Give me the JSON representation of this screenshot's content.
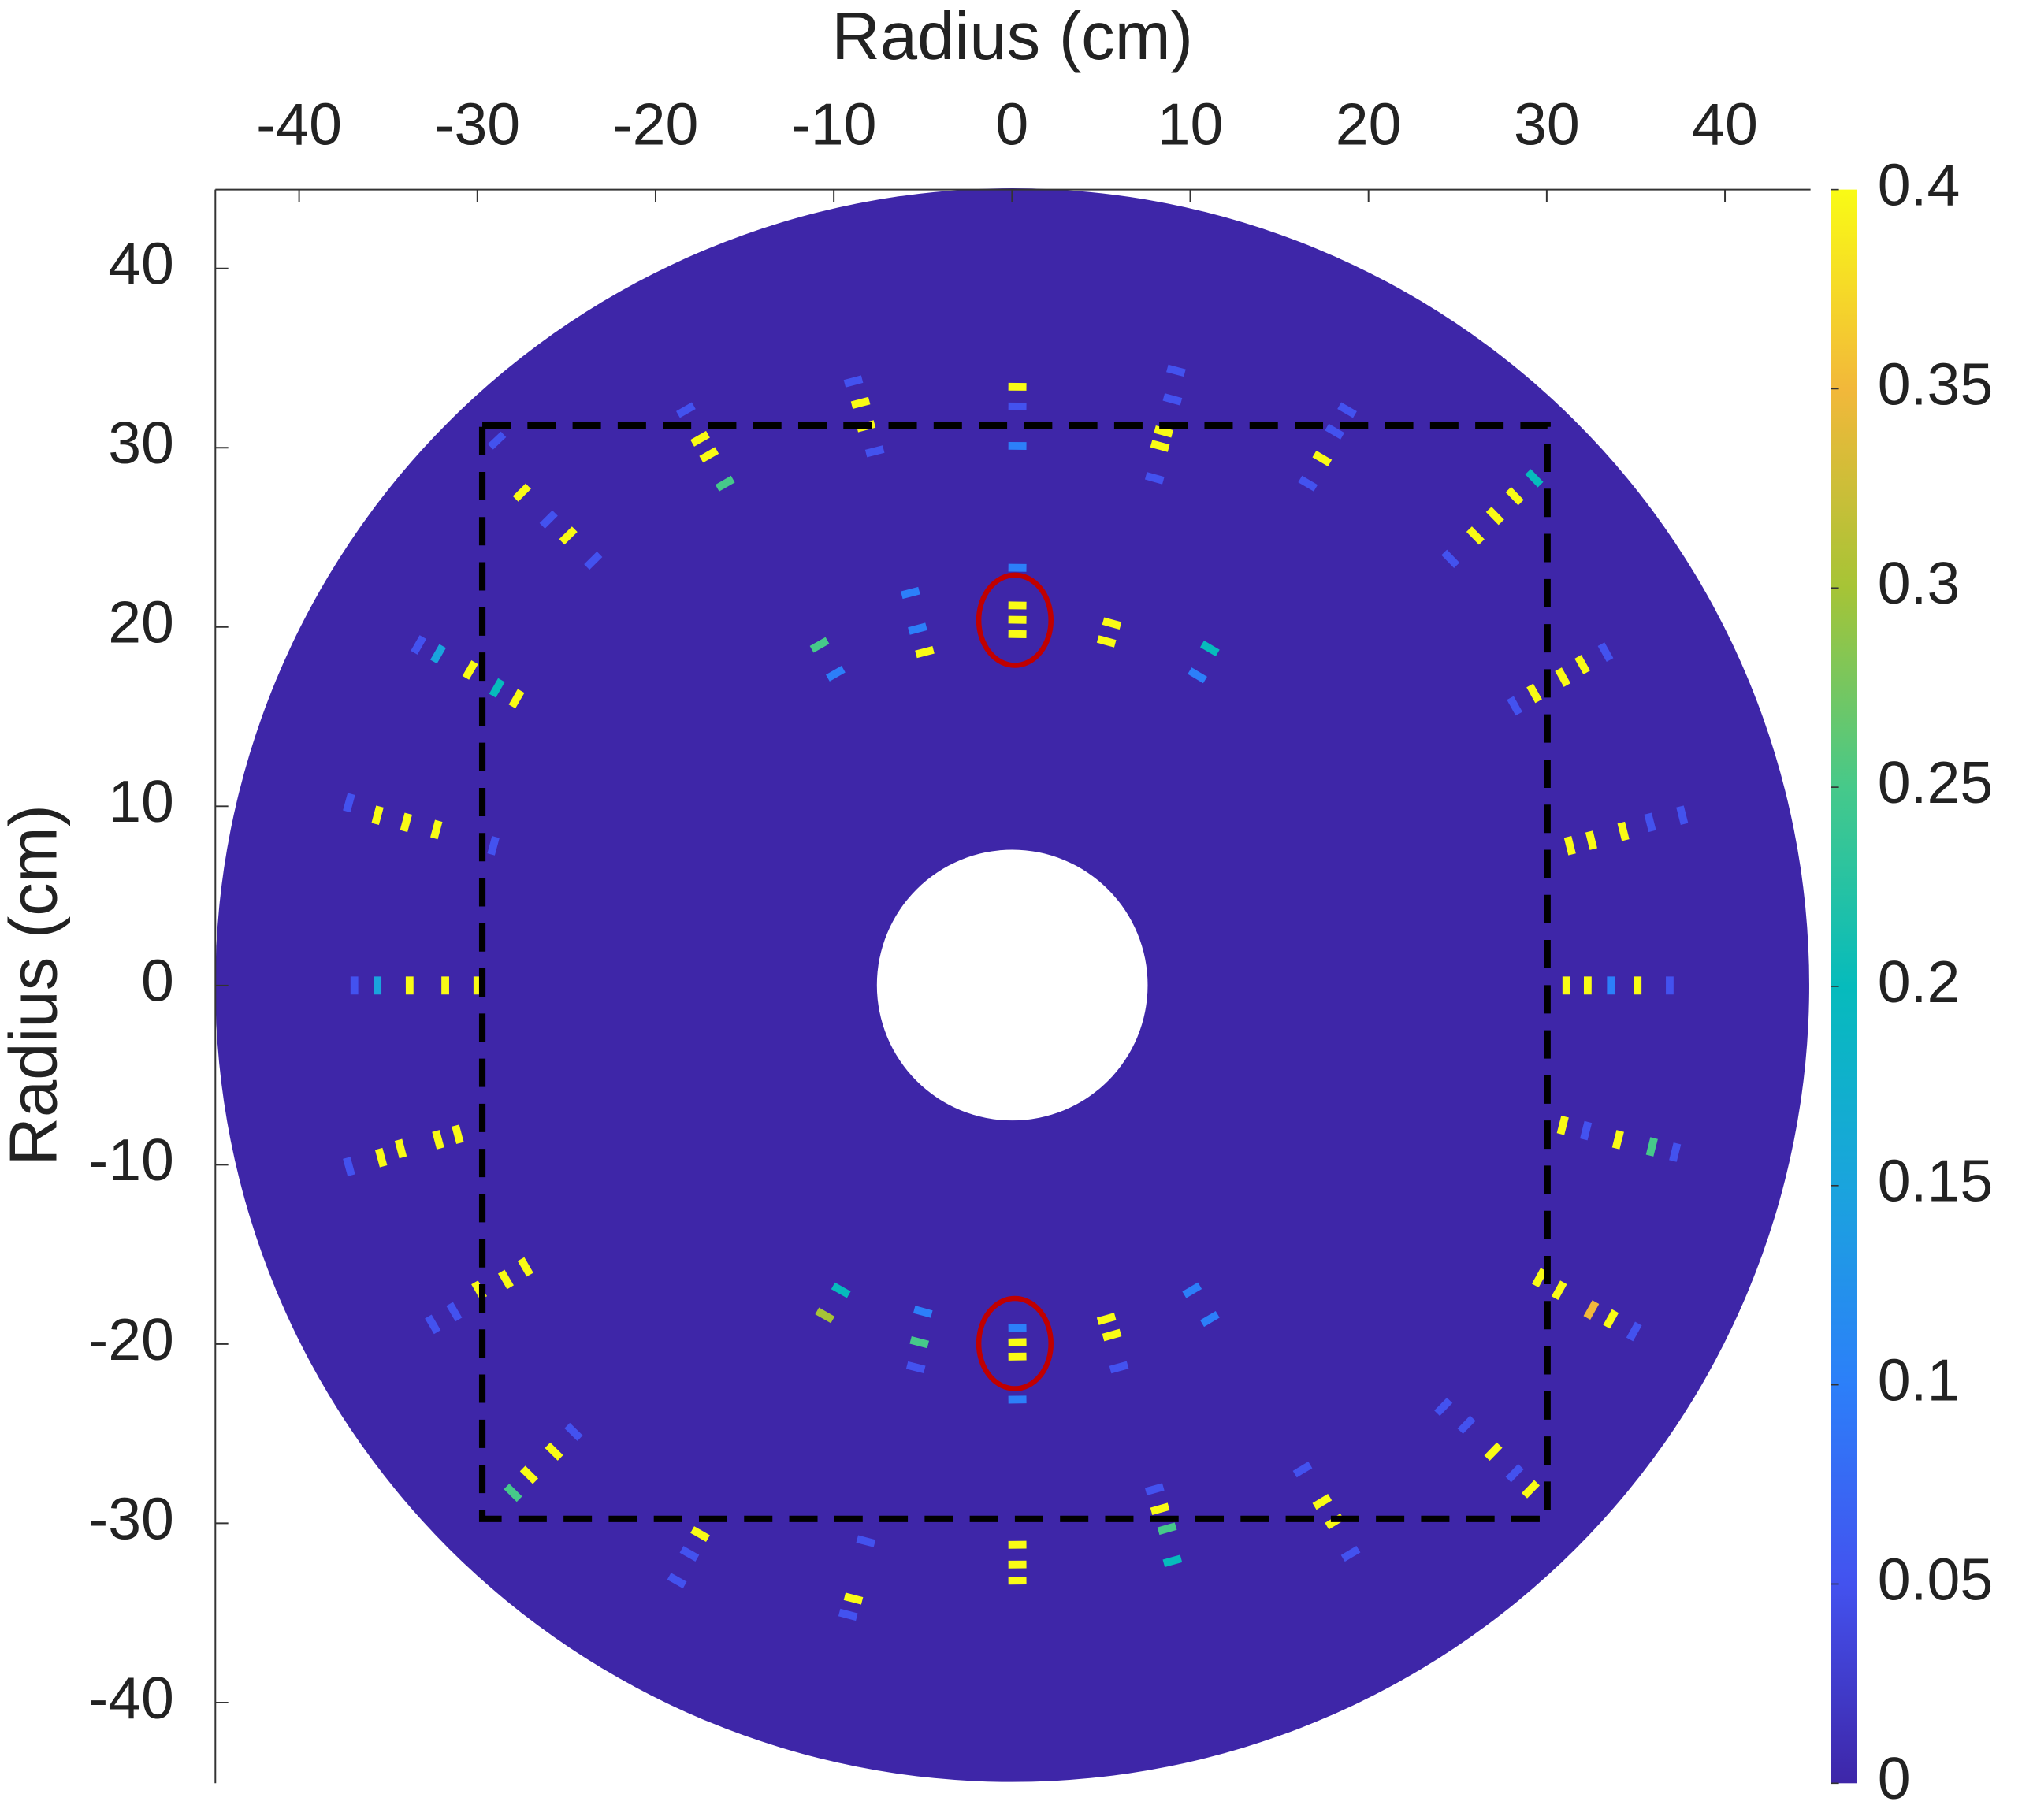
{
  "chart_data": {
    "type": "heatmap",
    "xlabel": "Radius (cm)",
    "ylabel": "Radius (cm)",
    "xlim": [
      -44.7,
      44.8
    ],
    "ylim": [
      -44.5,
      44.4
    ],
    "xticks": [
      -40,
      -30,
      -20,
      -10,
      0,
      10,
      20,
      30,
      40
    ],
    "yticks": [
      40,
      30,
      20,
      10,
      0,
      -10,
      -20,
      -30,
      -40
    ],
    "clim": [
      0,
      0.4
    ],
    "cticks": [
      0,
      0.05,
      0.1,
      0.15,
      0.2,
      0.25,
      0.3,
      0.35,
      0.4
    ],
    "colormap": [
      "#3e26a8",
      "#4352ef",
      "#2c7ff9",
      "#1aa4dd",
      "#06bbbc",
      "#46c98a",
      "#a6c436",
      "#f2b83a",
      "#f9fb15"
    ],
    "x": [
      0.3,
      0.3,
      0.3,
      0.3,
      0.3,
      0.3,
      0.3,
      0.3,
      0.3,
      0.3,
      0.3,
      0.3,
      0.3,
      0.3,
      31.1,
      32.3,
      33.6,
      35.1,
      36.9,
      -36.9,
      -35.6,
      -33.8,
      -31.8,
      -30,
      -37.2,
      -35.6,
      -34,
      -32.3,
      -29.1,
      -37.2,
      -35.4,
      -34.3,
      -32.2,
      -31.1,
      31.3,
      32.5,
      34.3,
      35.8,
      37.6,
      30.9,
      32.2,
      34,
      35.9,
      37.2,
      -33.3,
      -32.2,
      -30.4,
      -28.9,
      -27.8,
      28.2,
      29.3,
      30.9,
      32,
      33.3,
      -32.5,
      -31.3,
      -29.9,
      -28.4,
      -27.3,
      29.6,
      30.7,
      32.5,
      33.6,
      34.9,
      -28.9,
      -27.5,
      -26,
      -24.9,
      -23.5,
      24.6,
      26,
      27.1,
      28.2,
      29.3,
      -28,
      -27.1,
      -25.7,
      -24.6,
      24.2,
      25.5,
      27,
      28.2,
      29.1,
      -8.9,
      -8.5,
      -8.2,
      -7.7,
      -18.3,
      -17.5,
      -17,
      -16.1,
      9.2,
      9,
      8.5,
      8.3,
      8,
      18.8,
      18.1,
      17.4,
      16.6,
      -17.5,
      -18.1,
      -18.8,
      -8.2,
      -8.9,
      -9.2,
      8,
      8.3,
      8.7,
      9,
      16.3,
      17.4,
      18.1,
      19,
      -5.7,
      -5.3,
      -4.9,
      -10.8,
      -9.9,
      5.6,
      5.3,
      11.1,
      10.4,
      -5.2,
      -5,
      -5.4,
      -9.6,
      -10.5,
      5.3,
      5.6,
      6,
      10.1,
      11.1
    ],
    "y": [
      33.4,
      32.3,
      30.1,
      23.3,
      21.2,
      20.4,
      19.6,
      -19.1,
      -19.9,
      -20.7,
      -23.1,
      -31.2,
      -32.3,
      -33.2,
      0,
      0,
      0,
      0,
      0,
      0,
      0,
      0,
      0,
      0,
      10.2,
      9.5,
      9.1,
      8.7,
      7.8,
      -10.1,
      -9.6,
      -9.1,
      -8.6,
      -8.3,
      7.8,
      8.1,
      8.6,
      9.1,
      9.5,
      -7.8,
      -8.1,
      -8.6,
      -9,
      -9.3,
      19,
      18.5,
      17.6,
      16.6,
      16,
      15.6,
      16.3,
      17.2,
      17.9,
      18.6,
      -18.9,
      -18.2,
      -17,
      -16.4,
      -15.7,
      -16.3,
      -17,
      -18.1,
      -18.6,
      -19.3,
      30.4,
      27.5,
      26,
      25.1,
      23.7,
      23.8,
      25.1,
      26.2,
      27.3,
      28.3,
      -28.3,
      -27.3,
      -26,
      -24.9,
      -23.5,
      -24.5,
      -26,
      -27.2,
      -28.1,
      33.7,
      32.5,
      31.2,
      29.8,
      32.1,
      30.5,
      29.6,
      28,
      34.3,
      32.7,
      30.9,
      30.1,
      28.3,
      32.1,
      30.9,
      29.4,
      28,
      -30.6,
      -31.7,
      -33.2,
      -31,
      -34.2,
      -35.1,
      -28.1,
      -29.2,
      -30.3,
      -32.1,
      -27,
      -28.8,
      -29.9,
      -31.7,
      21.9,
      19.9,
      18.6,
      19,
      17.4,
      20.2,
      19.2,
      18.8,
      17.3,
      -19.9,
      -18.2,
      -21.3,
      -17,
      -18.4,
      -18.6,
      -19.5,
      -21.3,
      -17,
      -18.6
    ],
    "values": [
      0.4,
      0.05,
      0.1,
      0.1,
      0.4,
      0.4,
      0.4,
      0.1,
      0.4,
      0.4,
      0.1,
      0.4,
      0.4,
      0.4,
      0.4,
      0.4,
      0.1,
      0.4,
      0.05,
      0.05,
      0.15,
      0.4,
      0.4,
      0.4,
      0.05,
      0.4,
      0.4,
      0.4,
      0.05,
      0.05,
      0.4,
      0.4,
      0.4,
      0.4,
      0.4,
      0.4,
      0.4,
      0.05,
      0.05,
      0.4,
      0.05,
      0.4,
      0.25,
      0.05,
      0.05,
      0.15,
      0.4,
      0.2,
      0.4,
      0.05,
      0.4,
      0.4,
      0.4,
      0.05,
      0.05,
      0.05,
      0.4,
      0.4,
      0.4,
      0.4,
      0.4,
      0.35,
      0.4,
      0.05,
      0.05,
      0.4,
      0.05,
      0.4,
      0.05,
      0.05,
      0.4,
      0.4,
      0.4,
      0.2,
      0.25,
      0.4,
      0.4,
      0.05,
      0.05,
      0.05,
      0.4,
      0.05,
      0.4,
      0.05,
      0.4,
      0.4,
      0.05,
      0.05,
      0.4,
      0.4,
      0.25,
      0.05,
      0.05,
      0.4,
      0.4,
      0.05,
      0.05,
      0.05,
      0.4,
      0.05,
      0.4,
      0.05,
      0.05,
      0.05,
      0.4,
      0.05,
      0.05,
      0.4,
      0.25,
      0.2,
      0.05,
      0.4,
      0.4,
      0.05,
      0.1,
      0.1,
      0.4,
      0.25,
      0.1,
      0.4,
      0.4,
      0.2,
      0.1,
      0.25,
      0.1,
      0.05,
      0.2,
      0.3,
      0.4,
      0.4,
      0.05,
      0.1,
      0.1
    ]
  }
}
